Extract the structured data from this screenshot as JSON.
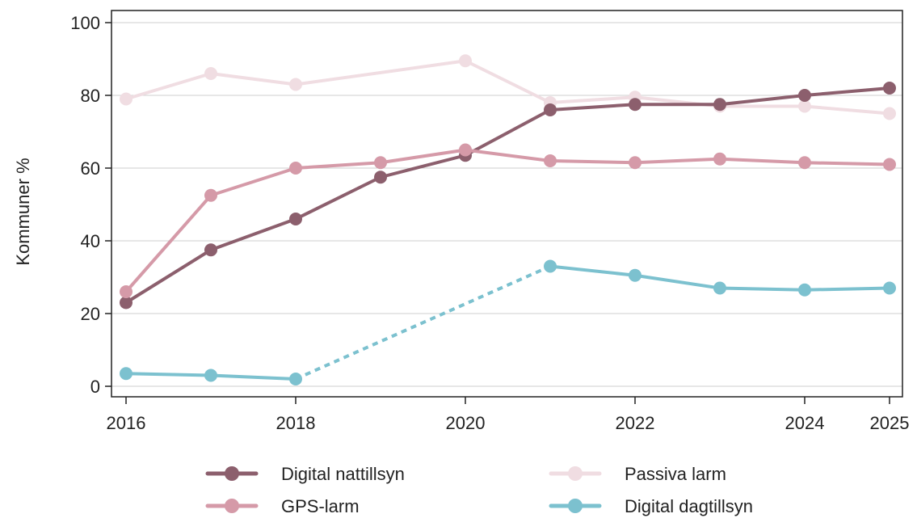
{
  "chart_data": {
    "type": "line",
    "title": "",
    "xlabel": "",
    "ylabel": "Kommuner %",
    "xlim": [
      2016,
      2025
    ],
    "ylim": [
      0,
      100
    ],
    "x_ticks": [
      2016,
      2018,
      2020,
      2022,
      2024,
      2025
    ],
    "y_ticks": [
      0,
      20,
      40,
      60,
      80,
      100
    ],
    "grid": "horizontal",
    "legend_position": "bottom",
    "series": [
      {
        "name": "Passiva larm",
        "color": "#f0dde2",
        "x": [
          2016,
          2017,
          2018,
          2020,
          2021,
          2022,
          2023,
          2024,
          2025
        ],
        "values": [
          79,
          86,
          83,
          89.5,
          78,
          79.5,
          77,
          77,
          75
        ]
      },
      {
        "name": "Digital nattillsyn",
        "color": "#8c5f6d",
        "x": [
          2016,
          2017,
          2018,
          2019,
          2020,
          2021,
          2022,
          2023,
          2024,
          2025
        ],
        "values": [
          23,
          37.5,
          46,
          57.5,
          63.5,
          76,
          77.5,
          77.5,
          80,
          82
        ]
      },
      {
        "name": "GPS-larm",
        "color": "#d59aa8",
        "x": [
          2016,
          2017,
          2018,
          2019,
          2020,
          2021,
          2022,
          2023,
          2024,
          2025
        ],
        "values": [
          26,
          52.5,
          60,
          61.5,
          65,
          62,
          61.5,
          62.5,
          61.5,
          61
        ]
      },
      {
        "name": "Digital dagtillsyn",
        "color": "#7cc1cf",
        "x": [
          2016,
          2017,
          2018,
          2021,
          2022,
          2023,
          2024,
          2025
        ],
        "values": [
          3.5,
          3,
          2,
          33,
          30.5,
          27,
          26.5,
          27
        ],
        "dashed_between": [
          2018,
          2021
        ]
      }
    ],
    "legend": [
      {
        "label": "Digital nattillsyn",
        "series": 1
      },
      {
        "label": "Passiva larm",
        "series": 0
      },
      {
        "label": "GPS-larm",
        "series": 2
      },
      {
        "label": "Digital dagtillsyn",
        "series": 3
      }
    ]
  }
}
